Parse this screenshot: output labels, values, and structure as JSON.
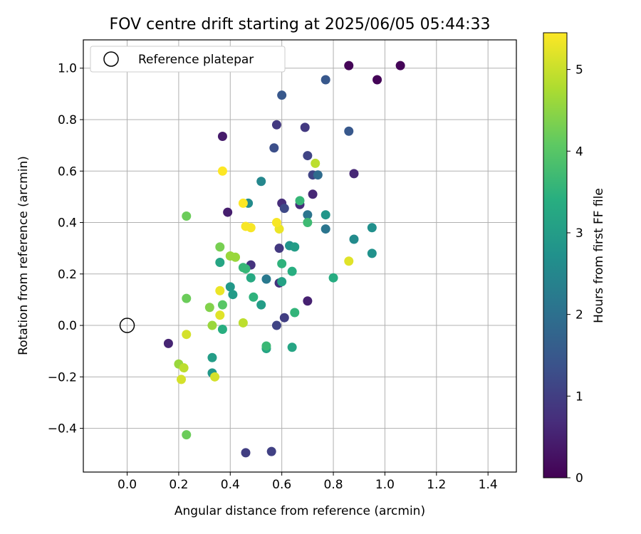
{
  "chart_data": {
    "type": "scatter",
    "title": "FOV centre drift starting at 2025/06/05 05:44:33",
    "xlabel": "Angular distance from reference (arcmin)",
    "ylabel": "Rotation from reference (arcmin)",
    "xlim": [
      -0.17,
      1.51
    ],
    "ylim": [
      -0.57,
      1.11
    ],
    "xticks": [
      0.0,
      0.2,
      0.4,
      0.6,
      0.8,
      1.0,
      1.2,
      1.4
    ],
    "xtick_labels": [
      "0.0",
      "0.2",
      "0.4",
      "0.6",
      "0.8",
      "1.0",
      "1.2",
      "1.4"
    ],
    "yticks": [
      -0.4,
      -0.2,
      0.0,
      0.2,
      0.4,
      0.6,
      0.8,
      1.0
    ],
    "ytick_labels": [
      "−0.4",
      "−0.2",
      "0.0",
      "0.2",
      "0.4",
      "0.6",
      "0.8",
      "1.0"
    ],
    "grid": true,
    "legend": {
      "position": "top-left",
      "entries": [
        "Reference platepar"
      ]
    },
    "reference_point": {
      "x": 0.0,
      "y": 0.0
    },
    "colorbar": {
      "label": "Hours from first FF file",
      "colormap": "viridis",
      "range": [
        0,
        5.45
      ],
      "ticks": [
        0,
        1,
        2,
        3,
        4,
        5
      ],
      "tick_labels": [
        "0",
        "1",
        "2",
        "3",
        "4",
        "5"
      ]
    },
    "points": [
      {
        "x": 0.86,
        "y": 1.01,
        "h": 0.05
      },
      {
        "x": 0.97,
        "y": 0.955,
        "h": 0.05
      },
      {
        "x": 1.06,
        "y": 1.01,
        "h": 0.05
      },
      {
        "x": 0.37,
        "y": 0.735,
        "h": 0.4
      },
      {
        "x": 0.39,
        "y": 0.44,
        "h": 0.45
      },
      {
        "x": 0.16,
        "y": -0.07,
        "h": 0.55
      },
      {
        "x": 0.7,
        "y": 0.095,
        "h": 0.5
      },
      {
        "x": 0.88,
        "y": 0.59,
        "h": 0.6
      },
      {
        "x": 0.72,
        "y": 0.51,
        "h": 0.6
      },
      {
        "x": 0.6,
        "y": 0.475,
        "h": 0.7
      },
      {
        "x": 0.67,
        "y": 0.47,
        "h": 0.7
      },
      {
        "x": 0.48,
        "y": 0.235,
        "h": 0.8
      },
      {
        "x": 0.59,
        "y": 0.165,
        "h": 0.8
      },
      {
        "x": 0.58,
        "y": 0.78,
        "h": 0.9
      },
      {
        "x": 0.69,
        "y": 0.77,
        "h": 0.9
      },
      {
        "x": 0.59,
        "y": 0.3,
        "h": 0.9
      },
      {
        "x": 0.61,
        "y": 0.03,
        "h": 1.0
      },
      {
        "x": 0.46,
        "y": -0.495,
        "h": 1.0
      },
      {
        "x": 0.56,
        "y": -0.49,
        "h": 1.05
      },
      {
        "x": 0.7,
        "y": 0.66,
        "h": 1.1
      },
      {
        "x": 0.72,
        "y": 0.585,
        "h": 1.1
      },
      {
        "x": 0.58,
        "y": 0.0,
        "h": 1.1
      },
      {
        "x": 0.61,
        "y": 0.455,
        "h": 1.2
      },
      {
        "x": 0.57,
        "y": 0.69,
        "h": 1.3
      },
      {
        "x": 0.6,
        "y": 0.895,
        "h": 1.5
      },
      {
        "x": 0.77,
        "y": 0.955,
        "h": 1.5
      },
      {
        "x": 0.86,
        "y": 0.755,
        "h": 1.5
      },
      {
        "x": 0.74,
        "y": 0.585,
        "h": 1.9
      },
      {
        "x": 0.7,
        "y": 0.43,
        "h": 2.1
      },
      {
        "x": 0.77,
        "y": 0.375,
        "h": 2.1
      },
      {
        "x": 0.54,
        "y": 0.18,
        "h": 2.2
      },
      {
        "x": 0.52,
        "y": 0.56,
        "h": 2.5
      },
      {
        "x": 0.47,
        "y": 0.475,
        "h": 2.6
      },
      {
        "x": 0.88,
        "y": 0.335,
        "h": 2.6
      },
      {
        "x": 0.95,
        "y": 0.38,
        "h": 2.7
      },
      {
        "x": 0.95,
        "y": 0.28,
        "h": 2.75
      },
      {
        "x": 0.77,
        "y": 0.43,
        "h": 2.85
      },
      {
        "x": 0.63,
        "y": 0.31,
        "h": 2.8
      },
      {
        "x": 0.65,
        "y": 0.305,
        "h": 3.0
      },
      {
        "x": 0.4,
        "y": 0.15,
        "h": 2.9
      },
      {
        "x": 0.41,
        "y": 0.12,
        "h": 2.95
      },
      {
        "x": 0.33,
        "y": -0.185,
        "h": 2.9
      },
      {
        "x": 0.33,
        "y": -0.125,
        "h": 3.0
      },
      {
        "x": 0.52,
        "y": 0.08,
        "h": 3.0
      },
      {
        "x": 0.6,
        "y": 0.17,
        "h": 3.1
      },
      {
        "x": 0.64,
        "y": -0.085,
        "h": 3.2
      },
      {
        "x": 0.54,
        "y": -0.09,
        "h": 3.2
      },
      {
        "x": 0.36,
        "y": 0.245,
        "h": 3.2
      },
      {
        "x": 0.48,
        "y": 0.185,
        "h": 3.3
      },
      {
        "x": 0.8,
        "y": 0.185,
        "h": 3.35
      },
      {
        "x": 0.64,
        "y": 0.21,
        "h": 3.4
      },
      {
        "x": 0.37,
        "y": -0.015,
        "h": 3.4
      },
      {
        "x": 0.49,
        "y": 0.11,
        "h": 3.5
      },
      {
        "x": 0.6,
        "y": 0.24,
        "h": 3.5
      },
      {
        "x": 0.65,
        "y": 0.05,
        "h": 3.55
      },
      {
        "x": 0.46,
        "y": 0.22,
        "h": 3.6
      },
      {
        "x": 0.45,
        "y": 0.225,
        "h": 3.6
      },
      {
        "x": 0.54,
        "y": -0.08,
        "h": 3.65
      },
      {
        "x": 0.67,
        "y": 0.485,
        "h": 3.6
      },
      {
        "x": 0.7,
        "y": 0.4,
        "h": 3.7
      },
      {
        "x": 0.37,
        "y": 0.08,
        "h": 4.0
      },
      {
        "x": 0.23,
        "y": 0.425,
        "h": 4.2
      },
      {
        "x": 0.23,
        "y": 0.105,
        "h": 4.2
      },
      {
        "x": 0.23,
        "y": -0.425,
        "h": 4.2
      },
      {
        "x": 0.36,
        "y": 0.305,
        "h": 4.3
      },
      {
        "x": 0.32,
        "y": 0.07,
        "h": 4.4
      },
      {
        "x": 0.2,
        "y": -0.15,
        "h": 4.6
      },
      {
        "x": 0.33,
        "y": 0.0,
        "h": 4.6
      },
      {
        "x": 0.4,
        "y": 0.27,
        "h": 4.6
      },
      {
        "x": 0.42,
        "y": 0.265,
        "h": 4.6
      },
      {
        "x": 0.45,
        "y": 0.01,
        "h": 4.9
      },
      {
        "x": 0.73,
        "y": 0.63,
        "h": 4.9
      },
      {
        "x": 0.22,
        "y": -0.165,
        "h": 4.9
      },
      {
        "x": 0.21,
        "y": -0.21,
        "h": 5.1
      },
      {
        "x": 0.23,
        "y": -0.035,
        "h": 5.1
      },
      {
        "x": 0.34,
        "y": -0.2,
        "h": 5.1
      },
      {
        "x": 0.36,
        "y": 0.04,
        "h": 5.2
      },
      {
        "x": 0.86,
        "y": 0.25,
        "h": 5.2
      },
      {
        "x": 0.36,
        "y": 0.135,
        "h": 5.3
      },
      {
        "x": 0.59,
        "y": 0.375,
        "h": 5.3
      },
      {
        "x": 0.58,
        "y": 0.4,
        "h": 5.4
      },
      {
        "x": 0.46,
        "y": 0.385,
        "h": 5.4
      },
      {
        "x": 0.48,
        "y": 0.38,
        "h": 5.4
      },
      {
        "x": 0.37,
        "y": 0.6,
        "h": 5.45
      },
      {
        "x": 0.45,
        "y": 0.475,
        "h": 5.45
      }
    ]
  }
}
